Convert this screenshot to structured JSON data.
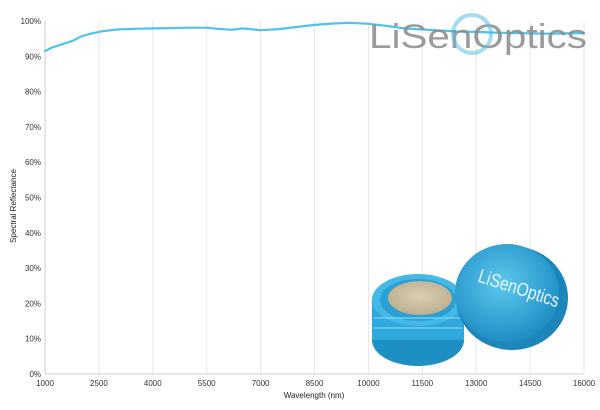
{
  "chart_data": {
    "type": "line",
    "title": "",
    "xlabel": "Wavelength (nm)",
    "ylabel": "Spectral Reflectance",
    "xlim": [
      1000,
      16000
    ],
    "ylim": [
      0,
      100
    ],
    "x_ticks": [
      1000,
      2500,
      4000,
      5500,
      7000,
      8500,
      10000,
      11500,
      13000,
      14500,
      16000
    ],
    "x_tick_labels": [
      "1000",
      "2500",
      "4000",
      "5500",
      "7000",
      "8500",
      "10000",
      "11500",
      "13000",
      "14500",
      "16000"
    ],
    "y_ticks": [
      0,
      10,
      20,
      30,
      40,
      50,
      60,
      70,
      80,
      90,
      100
    ],
    "y_tick_labels": [
      "0%",
      "10%",
      "20%",
      "30%",
      "40%",
      "50%",
      "60%",
      "70%",
      "80%",
      "90%",
      "100%"
    ],
    "grid": "vertical",
    "legend": "none",
    "series_color": "#4fc3ec",
    "series": [
      {
        "x": [
          1000,
          1200,
          1500,
          1800,
          2000,
          2300,
          2600,
          3000,
          3500,
          4000,
          4500,
          5000,
          5500,
          5800,
          6200,
          6500,
          7000,
          7500,
          8000,
          8500,
          9000,
          9500,
          10000,
          10500,
          11000,
          11500,
          12000,
          12500,
          13000,
          13500,
          14000,
          14500,
          15000,
          15500,
          16000
        ],
        "y": [
          91.5,
          92.5,
          93.5,
          94.5,
          95.6,
          96.5,
          97.1,
          97.6,
          97.8,
          97.9,
          98.0,
          98.1,
          98.1,
          97.8,
          97.5,
          97.9,
          97.4,
          97.7,
          98.3,
          98.9,
          99.3,
          99.5,
          99.2,
          98.6,
          97.9,
          97.6,
          97.3,
          97.0,
          96.9,
          96.7,
          96.6,
          96.5,
          96.4,
          96.5,
          96.6
        ]
      }
    ]
  },
  "watermark": {
    "brand_text": "LiSenOptics",
    "brand_color": "#8a8a8a",
    "accent_color": "#3fb2e2"
  },
  "product_image": {
    "label": "LiSenOptics",
    "case_color": "#2fa8dc",
    "sample_color": "#cbbf9f"
  }
}
